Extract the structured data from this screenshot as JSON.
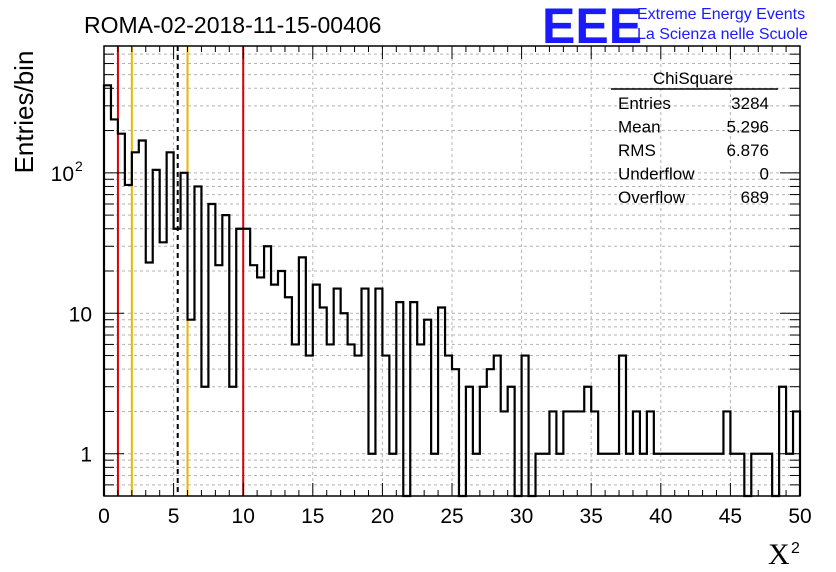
{
  "colors": {
    "histogram": "#000000",
    "red_line": "#dd0000",
    "yellow_line": "#e6b800",
    "dashed_line": "#000000",
    "grid": "#b4b4b4",
    "logo": "#1a1aff"
  },
  "logo": {
    "mark": "EEE",
    "line1": "Extreme Energy Events",
    "line2": "La Scienza nelle Scuole"
  },
  "stats": {
    "name": "ChiSquare",
    "rows": [
      {
        "label": "Entries",
        "value": "3284"
      },
      {
        "label": "Mean",
        "value": "5.296"
      },
      {
        "label": "RMS",
        "value": "6.876"
      },
      {
        "label": "Underflow",
        "value": "0"
      },
      {
        "label": "Overflow",
        "value": "689"
      }
    ]
  },
  "chart_data": {
    "type": "histogram",
    "title": "ROMA-02-2018-11-15-00406",
    "xlabel": "X",
    "xlabel_superscript": "2",
    "ylabel": "Entries/bin",
    "xlim": [
      0,
      50
    ],
    "ylim": [
      0.5,
      800
    ],
    "yscale": "log",
    "grid": true,
    "bin_width": 0.5,
    "xticks": [
      0,
      5,
      10,
      15,
      20,
      25,
      30,
      35,
      40,
      45,
      50
    ],
    "yticks": [
      {
        "value": 1,
        "label": "1"
      },
      {
        "value": 10,
        "label": "10"
      },
      {
        "value": 100,
        "label": "10",
        "exponent": "2"
      }
    ],
    "values": [
      420,
      240,
      190,
      82,
      140,
      170,
      23,
      105,
      32,
      140,
      40,
      100,
      9,
      80,
      3,
      60,
      22,
      50,
      3,
      40,
      40,
      22,
      18,
      30,
      16,
      20,
      13,
      6,
      25,
      5,
      16,
      11,
      6,
      15,
      10,
      6,
      5,
      15,
      1,
      15,
      5,
      1,
      12,
      0,
      12,
      6,
      9,
      1,
      11,
      5,
      4,
      0,
      3,
      1,
      3,
      4,
      5,
      2,
      3,
      0,
      5,
      0,
      1,
      1,
      2,
      1,
      2,
      2,
      2,
      3,
      2,
      1,
      1,
      1,
      5,
      1,
      2,
      1,
      2,
      1,
      1,
      1,
      1,
      1,
      1,
      1,
      1,
      1,
      1,
      2,
      1,
      1,
      0,
      1,
      1,
      1,
      0,
      3,
      1,
      2
    ],
    "vertical_lines": [
      {
        "x": 1,
        "style": "red"
      },
      {
        "x": 2,
        "style": "yellow"
      },
      {
        "x": 5.296,
        "style": "dashed"
      },
      {
        "x": 6,
        "style": "yellow"
      },
      {
        "x": 10,
        "style": "red"
      }
    ]
  }
}
